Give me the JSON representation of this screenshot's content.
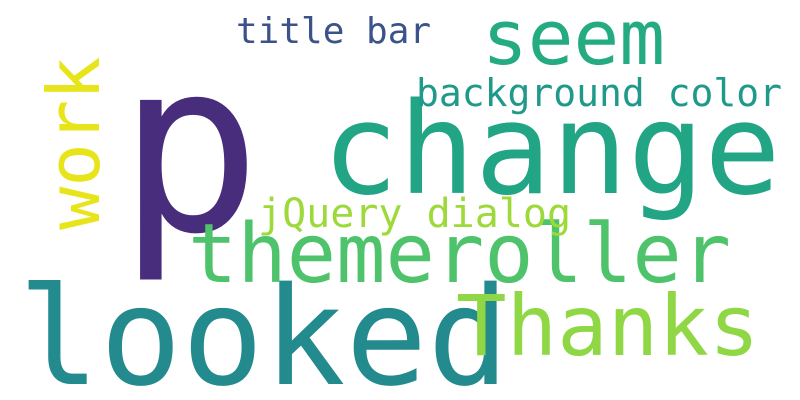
{
  "words": {
    "p": {
      "text": "p",
      "color": "#472d7b"
    },
    "change": {
      "text": "change",
      "color": "#21a585"
    },
    "looked": {
      "text": "looked",
      "color": "#238a8d"
    },
    "themeroller": {
      "text": "themeroller",
      "color": "#4ec36b"
    },
    "thanks": {
      "text": "Thanks",
      "color": "#8fd744"
    },
    "seem": {
      "text": "seem",
      "color": "#25ab82"
    },
    "work": {
      "text": "work",
      "color": "#e7e419"
    },
    "background_color": {
      "text": "background color",
      "color": "#1f9a8a"
    },
    "jquery_dialog": {
      "text": "jQuery dialog",
      "color": "#9dd93b"
    },
    "title_bar": {
      "text": "title bar",
      "color": "#3b528b"
    }
  }
}
